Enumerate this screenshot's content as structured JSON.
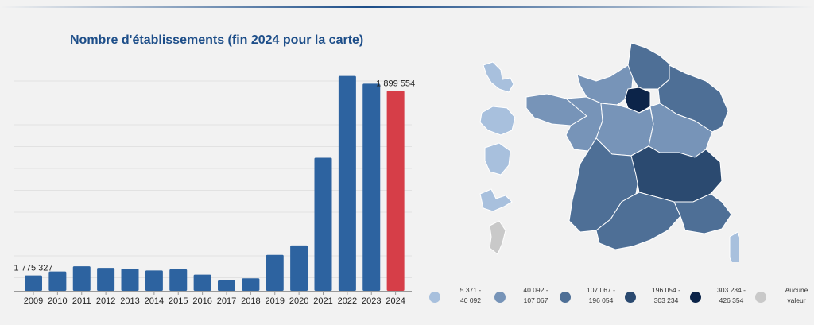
{
  "title": "Nombre d'établissements (fin 2024 pour la carte)",
  "chart_data": {
    "type": "bar",
    "categories": [
      "2009",
      "2010",
      "2011",
      "2012",
      "2013",
      "2014",
      "2015",
      "2016",
      "2017",
      "2018",
      "2019",
      "2020",
      "2021",
      "2022",
      "2023",
      "2024"
    ],
    "values": [
      1775327,
      1778000,
      1781500,
      1780400,
      1779900,
      1778700,
      1779500,
      1775900,
      1772500,
      1773400,
      1789200,
      1795500,
      1854500,
      1909500,
      1904300,
      1899554
    ],
    "data_labels": {
      "0": "1 775 327",
      "15": "1 899 554"
    },
    "ylim": [
      1765000,
      1920000
    ],
    "bar_color": "#2d63a0",
    "highlight_index": 15,
    "highlight_color": "#d63e48",
    "grid": true
  },
  "map": {
    "legend": [
      {
        "lines": [
          "5 371 -",
          "40 092"
        ],
        "color": "#a8c0dd"
      },
      {
        "lines": [
          "40 092 -",
          "107 067"
        ],
        "color": "#7794b8"
      },
      {
        "lines": [
          "107 067 -",
          "196 054"
        ],
        "color": "#4e6f96"
      },
      {
        "lines": [
          "196 054 -",
          "303 234"
        ],
        "color": "#2b4a70"
      },
      {
        "lines": [
          "303 234 -",
          "426 354"
        ],
        "color": "#0c2449"
      },
      {
        "lines": [
          "Aucune",
          "valeur"
        ],
        "color": "#c9c9c9"
      }
    ]
  }
}
